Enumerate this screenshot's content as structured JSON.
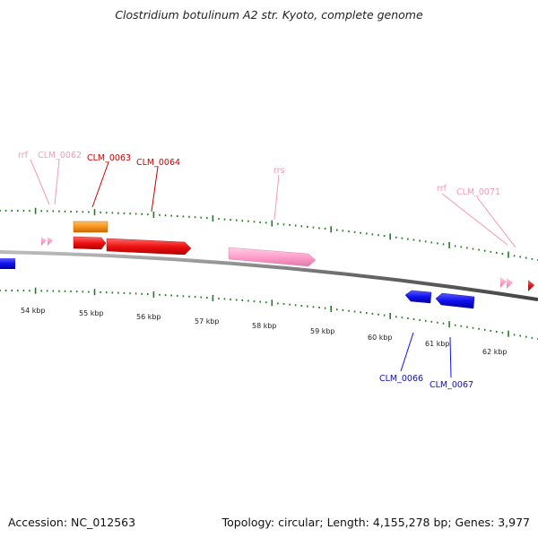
{
  "title": "Clostridium botulinum A2 str. Kyoto, complete genome",
  "footer": {
    "accession": "Accession: NC_012563",
    "summary": "Topology: circular; Length: 4,155,278 bp; Genes: 3,977"
  },
  "colors": {
    "backbone": "#777777",
    "ticks": "#1e7d1e",
    "rrna": "#ff99cc",
    "rrna_label": "#f29ab8",
    "forward_gene": "#ee1111",
    "forward_gene_label": "#cc0000",
    "reverse_gene": "#1010ee",
    "reverse_gene_label": "#1010aa",
    "orange_gene": "#f7941d"
  },
  "scale_labels": [
    "54 kbp",
    "55 kbp",
    "56 kbp",
    "57 kbp",
    "58 kbp",
    "59 kbp",
    "60 kbp",
    "61 kbp",
    "62 kbp"
  ],
  "feature_labels": {
    "rrf_1": "rrf",
    "clm_0062": "CLM_0062",
    "clm_0063": "CLM_0063",
    "clm_0064": "CLM_0064",
    "rrs": "rrs",
    "rrf_2": "rrf",
    "clm_0071": "CLM_0071",
    "clm_0066": "CLM_0066",
    "clm_0067": "CLM_0067"
  }
}
